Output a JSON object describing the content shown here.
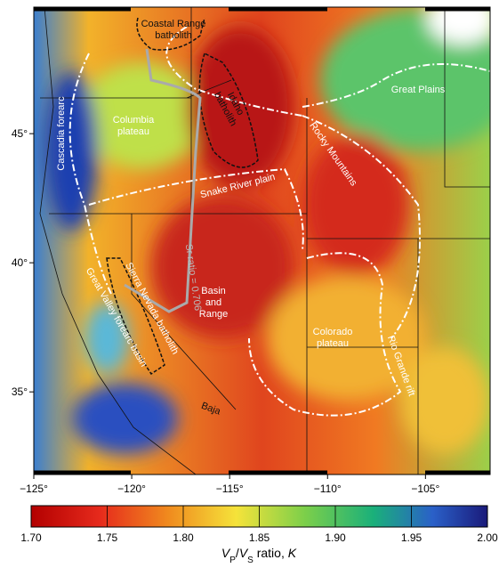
{
  "map": {
    "xlim": [
      -125,
      -101.7
    ],
    "ylim": [
      31.8,
      49.9
    ],
    "lon_ticks": [
      {
        "value": -125,
        "label": "−125°"
      },
      {
        "value": -120,
        "label": "−120°"
      },
      {
        "value": -115,
        "label": "−115°"
      },
      {
        "value": -110,
        "label": "−110°"
      },
      {
        "value": -105,
        "label": "−105°"
      }
    ],
    "lat_ticks": [
      {
        "value": 35,
        "label": "35°"
      },
      {
        "value": 40,
        "label": "40°"
      },
      {
        "value": 45,
        "label": "45°"
      }
    ],
    "labels": [
      {
        "lines": [
          "Coastal Range",
          "batholith"
        ]
      },
      {
        "lines": [
          "Idaho",
          "batholith"
        ]
      },
      {
        "lines": [
          "Great Plains"
        ]
      },
      {
        "lines": [
          "Columbia",
          "plateau"
        ]
      },
      {
        "lines": [
          "Cascadia forearc"
        ]
      },
      {
        "lines": [
          "Rocky Mountains"
        ]
      },
      {
        "lines": [
          "Snake River plain"
        ]
      },
      {
        "lines": [
          "Sr ratio = 0.706"
        ]
      },
      {
        "lines": [
          "Sierra Nevada batholith"
        ]
      },
      {
        "lines": [
          "Basin",
          "and",
          "Range"
        ]
      },
      {
        "lines": [
          "Great Valley forearc basin"
        ]
      },
      {
        "lines": [
          "Colorado",
          "plateau"
        ]
      },
      {
        "lines": [
          "Rio Grande rift"
        ]
      },
      {
        "lines": [
          "Baja"
        ]
      }
    ]
  },
  "colorbar": {
    "range": [
      1.7,
      2.0
    ],
    "ticks": [
      {
        "value": 1.7,
        "label": "1.70"
      },
      {
        "value": 1.75,
        "label": "1.75"
      },
      {
        "value": 1.8,
        "label": "1.80"
      },
      {
        "value": 1.85,
        "label": "1.85"
      },
      {
        "value": 1.9,
        "label": "1.90"
      },
      {
        "value": 1.95,
        "label": "1.95"
      },
      {
        "value": 2.0,
        "label": "2.00"
      }
    ],
    "label_parts": [
      "V",
      "P",
      "/",
      "V",
      "S",
      " ratio, ",
      "K"
    ]
  }
}
